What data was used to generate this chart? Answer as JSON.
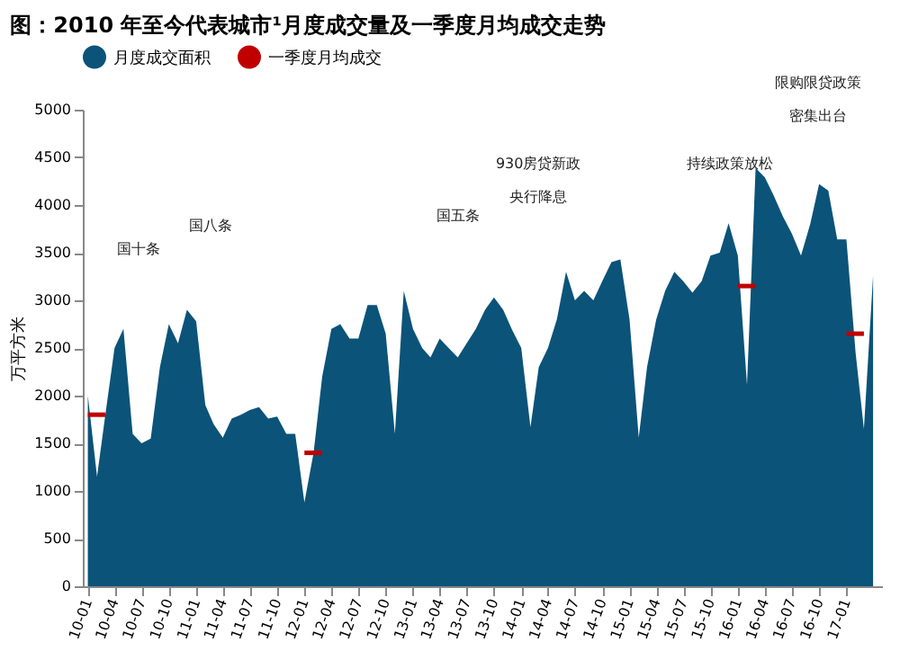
{
  "chart_data": {
    "type": "area",
    "title": "图：2010 年至今代表城市¹月度成交量及一季度月均成交走势",
    "ylabel": "万平方米",
    "x": [
      "2010-01",
      "2010-02",
      "2010-03",
      "2010-04",
      "2010-05",
      "2010-06",
      "2010-07",
      "2010-08",
      "2010-09",
      "2010-10",
      "2010-11",
      "2010-12",
      "2011-01",
      "2011-02",
      "2011-03",
      "2011-04",
      "2011-05",
      "2011-06",
      "2011-07",
      "2011-08",
      "2011-09",
      "2011-10",
      "2011-11",
      "2011-12",
      "2012-01",
      "2012-02",
      "2012-03",
      "2012-04",
      "2012-05",
      "2012-06",
      "2012-07",
      "2012-08",
      "2012-09",
      "2012-10",
      "2012-11",
      "2012-12",
      "2013-01",
      "2013-02",
      "2013-03",
      "2013-04",
      "2013-05",
      "2013-06",
      "2013-07",
      "2013-08",
      "2013-09",
      "2013-10",
      "2013-11",
      "2013-12",
      "2014-01",
      "2014-02",
      "2014-03",
      "2014-04",
      "2014-05",
      "2014-06",
      "2014-07",
      "2014-08",
      "2014-09",
      "2014-10",
      "2014-11",
      "2014-12",
      "2015-01",
      "2015-02",
      "2015-03",
      "2015-04",
      "2015-05",
      "2015-06",
      "2015-07",
      "2015-08",
      "2015-09",
      "2015-10",
      "2015-11",
      "2015-12",
      "2016-01",
      "2016-02",
      "2016-03",
      "2016-04",
      "2016-05",
      "2016-06",
      "2016-07",
      "2016-08",
      "2016-09",
      "2016-10",
      "2016-11",
      "2016-12",
      "2017-01",
      "2017-02",
      "2017-03",
      "2017-04"
    ],
    "series": [
      {
        "name": "月度成交面积",
        "color": "#0b5378",
        "values": [
          2000,
          1150,
          1800,
          2500,
          2700,
          1600,
          1500,
          1550,
          2300,
          2750,
          2550,
          2900,
          2780,
          1900,
          1700,
          1560,
          1760,
          1800,
          1850,
          1880,
          1760,
          1780,
          1600,
          1600,
          880,
          1400,
          2200,
          2700,
          2750,
          2600,
          2600,
          2950,
          2950,
          2650,
          1600,
          3100,
          2700,
          2500,
          2400,
          2600,
          2500,
          2400,
          2550,
          2700,
          2900,
          3030,
          2900,
          2690,
          2500,
          1670,
          2300,
          2500,
          2800,
          3300,
          3000,
          3100,
          3000,
          3200,
          3400,
          3430,
          2800,
          1560,
          2300,
          2800,
          3100,
          3300,
          3200,
          3080,
          3200,
          3470,
          3500,
          3810,
          3470,
          2110,
          4390,
          4290,
          4100,
          3880,
          3700,
          3470,
          3800,
          4220,
          4150,
          3640,
          3640,
          2450,
          1650,
          3260
        ]
      },
      {
        "name": "一季度月均成交",
        "type": "line",
        "color": "#c00000",
        "values": [
          1800,
          1800,
          1800,
          null,
          null,
          null,
          null,
          null,
          null,
          null,
          null,
          null,
          null,
          null,
          null,
          null,
          null,
          null,
          null,
          null,
          null,
          null,
          null,
          null,
          1400,
          1400,
          1400,
          null,
          null,
          null,
          null,
          null,
          null,
          null,
          null,
          null,
          null,
          null,
          null,
          null,
          null,
          null,
          null,
          null,
          null,
          null,
          null,
          null,
          null,
          null,
          null,
          null,
          null,
          null,
          null,
          null,
          null,
          null,
          null,
          null,
          null,
          null,
          null,
          null,
          null,
          null,
          null,
          null,
          null,
          null,
          null,
          null,
          3150,
          3150,
          3150,
          null,
          null,
          null,
          null,
          null,
          null,
          null,
          null,
          null,
          2650,
          2650,
          2650,
          null
        ]
      }
    ],
    "xlim": [
      "2009-12-15",
      "2017-05"
    ],
    "xticks": [
      {
        "value": "2010-01",
        "label": "10-01"
      },
      {
        "value": "2010-04",
        "label": "10-04"
      },
      {
        "value": "2010-07",
        "label": "10-07"
      },
      {
        "value": "2010-10",
        "label": "10-10"
      },
      {
        "value": "2011-01",
        "label": "11-01"
      },
      {
        "value": "2011-04",
        "label": "11-04"
      },
      {
        "value": "2011-07",
        "label": "11-07"
      },
      {
        "value": "2011-10",
        "label": "11-10"
      },
      {
        "value": "2012-01",
        "label": "12-01"
      },
      {
        "value": "2012-04",
        "label": "12-04"
      },
      {
        "value": "2012-07",
        "label": "12-07"
      },
      {
        "value": "2012-10",
        "label": "12-10"
      },
      {
        "value": "2013-01",
        "label": "13-01"
      },
      {
        "value": "2013-04",
        "label": "13-04"
      },
      {
        "value": "2013-07",
        "label": "13-07"
      },
      {
        "value": "2013-10",
        "label": "13-10"
      },
      {
        "value": "2014-01",
        "label": "14-01"
      },
      {
        "value": "2014-04",
        "label": "14-04"
      },
      {
        "value": "2014-07",
        "label": "14-07"
      },
      {
        "value": "2014-10",
        "label": "14-10"
      },
      {
        "value": "2015-01",
        "label": "15-01"
      },
      {
        "value": "2015-04",
        "label": "15-04"
      },
      {
        "value": "2015-07",
        "label": "15-07"
      },
      {
        "value": "2015-10",
        "label": "15-10"
      },
      {
        "value": "2016-01",
        "label": "16-01"
      },
      {
        "value": "2016-04",
        "label": "16-04"
      },
      {
        "value": "2016-07",
        "label": "16-07"
      },
      {
        "value": "2016-10",
        "label": "16-10"
      },
      {
        "value": "2017-01",
        "label": "17-01"
      }
    ],
    "ylim": [
      0,
      5000
    ],
    "yticks": [
      0,
      500,
      1000,
      1500,
      2000,
      2500,
      3000,
      3500,
      4000,
      4500,
      5000
    ],
    "grid": false,
    "legend": "top",
    "annotations": [
      "国十条",
      "国八条",
      "国五条",
      "930房贷新政",
      "央行降息",
      "持续政策放松",
      "限购限贷政策",
      "密集出台"
    ]
  }
}
